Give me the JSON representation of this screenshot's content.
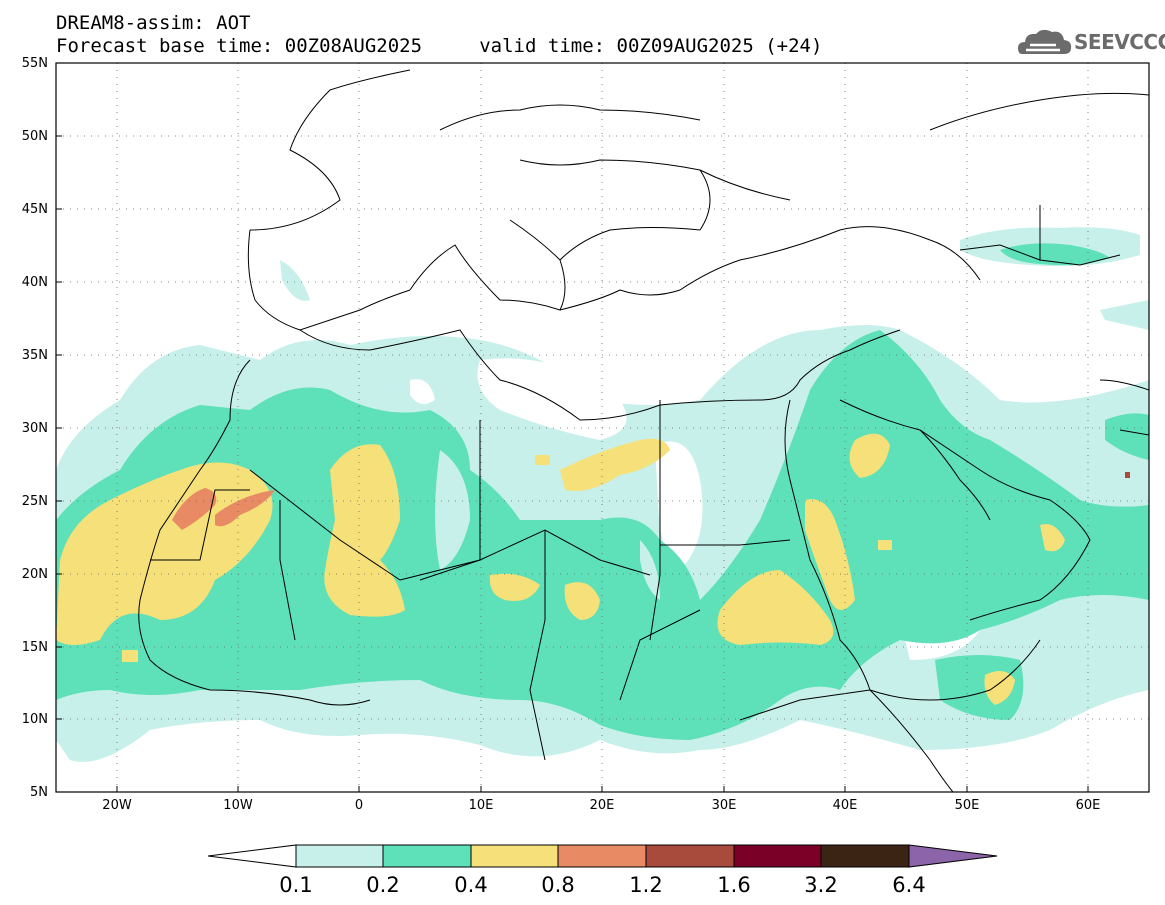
{
  "title_line1": "DREAM8-assim: AOT",
  "title_line2": "Forecast base time: 00Z08AUG2025     valid time: 00Z09AUG2025 (+24)",
  "logo_text": "SEEVCCC",
  "map": {
    "lat_range": [
      5,
      55
    ],
    "lon_range": [
      -25,
      65
    ],
    "lat_labels": [
      "55N",
      "50N",
      "45N",
      "40N",
      "35N",
      "30N",
      "25N",
      "20N",
      "15N",
      "10N",
      "5N"
    ],
    "lon_labels": [
      "20W",
      "10W",
      "0",
      "10E",
      "20E",
      "30E",
      "40E",
      "50E",
      "60E"
    ],
    "grid": "dotted"
  },
  "colorbar": {
    "labels": [
      "0.1",
      "0.2",
      "0.4",
      "0.8",
      "1.2",
      "1.6",
      "3.2",
      "6.4"
    ],
    "colors": [
      "#ffffff",
      "#c8f0ea",
      "#5ee0b8",
      "#f5e07a",
      "#e88a64",
      "#a84a3c",
      "#7a0028",
      "#3c2414",
      "#8c64aa"
    ]
  }
}
